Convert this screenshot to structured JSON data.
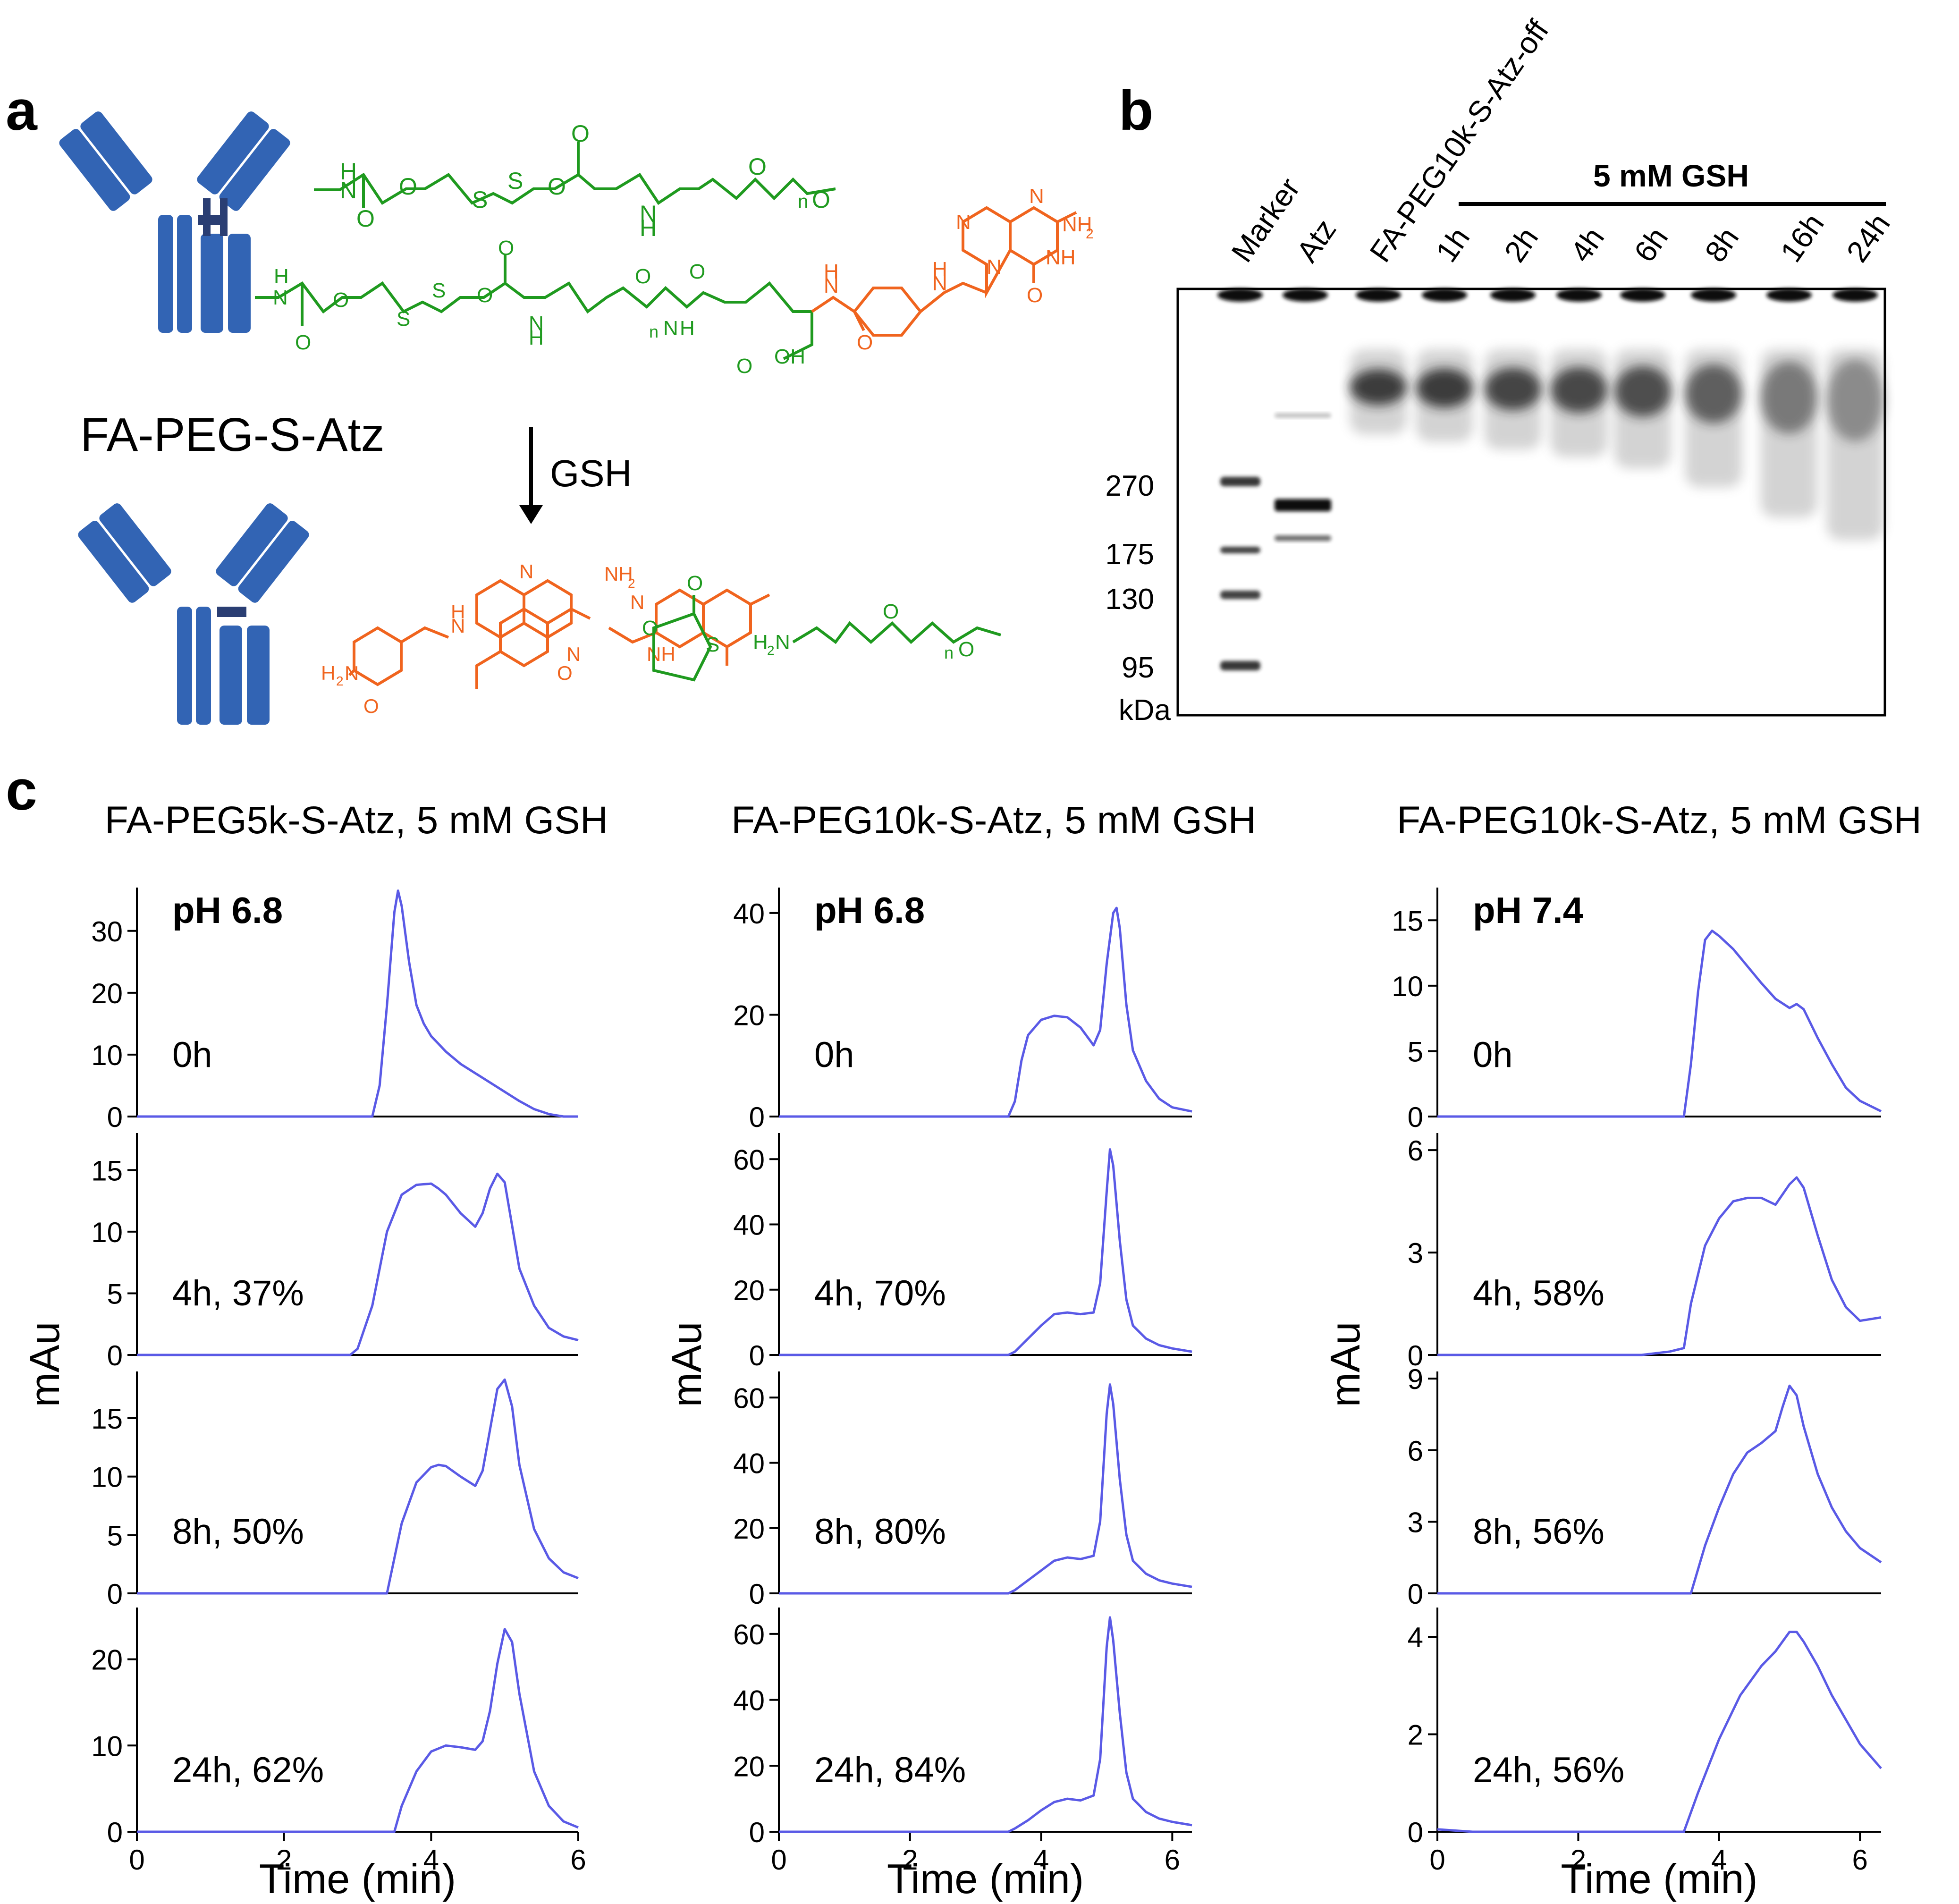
{
  "panel_a": {
    "label": "a",
    "conjugate_name": "FA-PEG-S-Atz",
    "arrow_label": "GSH",
    "chem": {
      "H": "H",
      "N": "N",
      "O": "O",
      "S": "S",
      "n": "n",
      "NH": "NH",
      "NH2": "NH",
      "NH2_sub": "2",
      "H2N": "H",
      "H2N_sub": "2",
      "H2N_N": "N",
      "OH": "OH"
    },
    "colors": {
      "antibody": "#3264B4",
      "peg": "#1F9A1F",
      "folate": "#F0641E"
    }
  },
  "panel_b": {
    "label": "b",
    "treatment": "5 mM GSH",
    "lanes": [
      "Marker",
      "Atz",
      "FA-PEG10k-S-Atz-off",
      "1h",
      "2h",
      "4h",
      "6h",
      "8h",
      "16h",
      "24h"
    ],
    "mw_marks": [
      "270",
      "175",
      "130",
      "95"
    ],
    "mw_unit": "kDa"
  },
  "panel_c": {
    "label": "c",
    "ylabel": "mAu",
    "xlabel": "Time (min)",
    "columns": [
      {
        "title": "FA-PEG5k-S-Atz, 5 mM GSH",
        "ph": "pH 6.8"
      },
      {
        "title": "FA-PEG10k-S-Atz, 5 mM GSH",
        "ph": "pH 6.8"
      },
      {
        "title": "FA-PEG10k-S-Atz, 5 mM GSH",
        "ph": "pH 7.4"
      }
    ]
  },
  "chart_data": [
    {
      "type": "line",
      "column": 0,
      "label": "0h",
      "xlim": [
        0,
        6
      ],
      "ylim": [
        0,
        37
      ],
      "yticks": [
        0,
        10,
        20,
        30
      ],
      "xticks": [
        0,
        2,
        4,
        6
      ],
      "color": "#5A5AE6",
      "x": [
        0,
        3.2,
        3.3,
        3.4,
        3.5,
        3.55,
        3.6,
        3.7,
        3.8,
        3.9,
        4.0,
        4.2,
        4.4,
        4.6,
        4.8,
        5.0,
        5.2,
        5.4,
        5.6,
        5.8,
        6.0
      ],
      "y": [
        0,
        0,
        5,
        18,
        33,
        36.5,
        34,
        25,
        18,
        15,
        13,
        10.5,
        8.5,
        7,
        5.5,
        4,
        2.5,
        1.2,
        0.4,
        0,
        0
      ]
    },
    {
      "type": "line",
      "column": 0,
      "label": "4h, 37%",
      "xlim": [
        0,
        6
      ],
      "ylim": [
        0,
        18
      ],
      "yticks": [
        0,
        5,
        10,
        15
      ],
      "xticks": [
        0,
        2,
        4,
        6
      ],
      "color": "#5A5AE6",
      "x": [
        0,
        2.9,
        3.0,
        3.2,
        3.4,
        3.6,
        3.8,
        4.0,
        4.1,
        4.2,
        4.4,
        4.6,
        4.7,
        4.8,
        4.9,
        5.0,
        5.1,
        5.2,
        5.4,
        5.6,
        5.8,
        6.0
      ],
      "y": [
        0,
        0,
        0.5,
        4,
        10,
        13,
        13.8,
        13.9,
        13.5,
        13,
        11.5,
        10.4,
        11.5,
        13.5,
        14.7,
        14,
        10.5,
        7,
        4,
        2.2,
        1.5,
        1.2
      ]
    },
    {
      "type": "line",
      "column": 0,
      "label": "8h, 50%",
      "xlim": [
        0,
        6
      ],
      "ylim": [
        0,
        19
      ],
      "yticks": [
        0,
        5,
        10,
        15
      ],
      "xticks": [
        0,
        2,
        4,
        6
      ],
      "color": "#5A5AE6",
      "x": [
        0,
        3.4,
        3.6,
        3.8,
        4.0,
        4.1,
        4.2,
        4.4,
        4.6,
        4.7,
        4.8,
        4.9,
        5.0,
        5.1,
        5.2,
        5.4,
        5.6,
        5.8,
        6.0
      ],
      "y": [
        0,
        0,
        6,
        9.5,
        10.8,
        11,
        10.9,
        10,
        9.2,
        10.5,
        14,
        17.5,
        18.3,
        16,
        11,
        5.5,
        3,
        1.8,
        1.3
      ]
    },
    {
      "type": "line",
      "column": 0,
      "label": "24h, 62%",
      "xlim": [
        0,
        6
      ],
      "ylim": [
        0,
        26
      ],
      "yticks": [
        0,
        10,
        20
      ],
      "xticks": [
        0,
        2,
        4,
        6
      ],
      "color": "#5A5AE6",
      "x": [
        0,
        3.5,
        3.6,
        3.8,
        4.0,
        4.2,
        4.4,
        4.6,
        4.7,
        4.8,
        4.9,
        5.0,
        5.1,
        5.2,
        5.4,
        5.6,
        5.8,
        6.0
      ],
      "y": [
        0,
        0,
        3,
        7,
        9.3,
        10,
        9.8,
        9.5,
        10.5,
        14,
        19.5,
        23.5,
        22,
        16,
        7,
        3,
        1.2,
        0.5
      ]
    },
    {
      "type": "line",
      "column": 1,
      "label": "0h",
      "xlim": [
        0,
        6.3
      ],
      "ylim": [
        0,
        45
      ],
      "yticks": [
        0,
        20,
        40
      ],
      "xticks": [
        0,
        2,
        4,
        6
      ],
      "color": "#5A5AE6",
      "x": [
        0,
        3.5,
        3.6,
        3.7,
        3.8,
        4.0,
        4.2,
        4.4,
        4.6,
        4.8,
        4.9,
        5.0,
        5.1,
        5.15,
        5.2,
        5.3,
        5.4,
        5.6,
        5.8,
        6.0,
        6.3
      ],
      "y": [
        0,
        0,
        3,
        11,
        16,
        19,
        19.8,
        19.5,
        17.5,
        14,
        17,
        30,
        40,
        41,
        37,
        22,
        13,
        7,
        3.5,
        1.8,
        1
      ]
    },
    {
      "type": "line",
      "column": 1,
      "label": "4h, 70%",
      "xlim": [
        0,
        6.3
      ],
      "ylim": [
        0,
        68
      ],
      "yticks": [
        0,
        20,
        40,
        60
      ],
      "xticks": [
        0,
        2,
        4,
        6
      ],
      "color": "#5A5AE6",
      "x": [
        0,
        3.5,
        3.6,
        3.8,
        4.0,
        4.2,
        4.4,
        4.6,
        4.8,
        4.9,
        5.0,
        5.05,
        5.1,
        5.2,
        5.3,
        5.4,
        5.6,
        5.8,
        6.0,
        6.3
      ],
      "y": [
        0,
        0,
        1,
        5,
        9,
        12.5,
        13,
        12.5,
        13,
        22,
        50,
        63,
        58,
        35,
        17,
        9,
        5,
        3,
        2,
        1
      ]
    },
    {
      "type": "line",
      "column": 1,
      "label": "8h, 80%",
      "xlim": [
        0,
        6.3
      ],
      "ylim": [
        0,
        68
      ],
      "yticks": [
        0,
        20,
        40,
        60
      ],
      "xticks": [
        0,
        2,
        4,
        6
      ],
      "color": "#5A5AE6",
      "x": [
        0,
        3.5,
        3.6,
        3.8,
        4.0,
        4.2,
        4.4,
        4.6,
        4.8,
        4.9,
        5.0,
        5.05,
        5.1,
        5.2,
        5.3,
        5.4,
        5.6,
        5.8,
        6.0,
        6.3
      ],
      "y": [
        0,
        0,
        1,
        4,
        7,
        10,
        11,
        10.5,
        11.5,
        22,
        55,
        64,
        58,
        35,
        18,
        10,
        6,
        4,
        3,
        2
      ]
    },
    {
      "type": "line",
      "column": 1,
      "label": "24h, 84%",
      "xlim": [
        0,
        6.3
      ],
      "ylim": [
        0,
        68
      ],
      "yticks": [
        0,
        20,
        40,
        60
      ],
      "xticks": [
        0,
        2,
        4,
        6
      ],
      "color": "#5A5AE6",
      "x": [
        0,
        3.5,
        3.6,
        3.8,
        4.0,
        4.2,
        4.4,
        4.6,
        4.8,
        4.9,
        5.0,
        5.05,
        5.1,
        5.2,
        5.3,
        5.4,
        5.6,
        5.8,
        6.0,
        6.3
      ],
      "y": [
        0,
        0,
        1,
        3.5,
        6.5,
        9,
        10,
        9.5,
        11,
        22,
        56,
        65,
        58,
        36,
        18,
        10,
        6,
        4,
        3,
        2
      ]
    },
    {
      "type": "line",
      "column": 2,
      "label": "0h",
      "xlim": [
        0,
        6.3
      ],
      "ylim": [
        0,
        17.5
      ],
      "yticks": [
        0,
        5,
        10,
        15
      ],
      "xticks": [
        0,
        2,
        4,
        6
      ],
      "color": "#5A5AE6",
      "x": [
        0,
        3.5,
        3.6,
        3.7,
        3.8,
        3.9,
        4.0,
        4.2,
        4.4,
        4.6,
        4.8,
        5.0,
        5.1,
        5.2,
        5.4,
        5.6,
        5.8,
        6.0,
        6.3
      ],
      "y": [
        0,
        0,
        4,
        9.5,
        13.5,
        14.2,
        13.8,
        12.8,
        11.5,
        10.2,
        9,
        8.3,
        8.6,
        8.2,
        6,
        4,
        2.2,
        1.2,
        0.4
      ]
    },
    {
      "type": "line",
      "column": 2,
      "label": "4h, 58%",
      "xlim": [
        0,
        6.3
      ],
      "ylim": [
        0,
        6.5
      ],
      "yticks": [
        0,
        3,
        6
      ],
      "xticks": [
        0,
        2,
        4,
        6
      ],
      "color": "#5A5AE6",
      "x": [
        0,
        2.9,
        3.3,
        3.5,
        3.6,
        3.8,
        4.0,
        4.2,
        4.4,
        4.6,
        4.8,
        5.0,
        5.1,
        5.2,
        5.4,
        5.6,
        5.8,
        6.0,
        6.3
      ],
      "y": [
        0,
        0,
        0.1,
        0.2,
        1.5,
        3.2,
        4,
        4.5,
        4.6,
        4.6,
        4.4,
        5,
        5.2,
        4.9,
        3.5,
        2.2,
        1.4,
        1,
        1.1
      ]
    },
    {
      "type": "line",
      "column": 2,
      "label": "8h, 56%",
      "xlim": [
        0,
        6.3
      ],
      "ylim": [
        0,
        9.3
      ],
      "yticks": [
        0,
        3,
        6,
        9
      ],
      "xticks": [
        0,
        2,
        4,
        6
      ],
      "color": "#5A5AE6",
      "x": [
        0,
        3.6,
        3.8,
        4.0,
        4.2,
        4.4,
        4.6,
        4.8,
        4.9,
        5.0,
        5.1,
        5.2,
        5.4,
        5.6,
        5.8,
        6.0,
        6.3
      ],
      "y": [
        0,
        0,
        2,
        3.6,
        5,
        5.9,
        6.3,
        6.8,
        7.8,
        8.7,
        8.3,
        7,
        5,
        3.6,
        2.6,
        1.9,
        1.3
      ]
    },
    {
      "type": "line",
      "column": 2,
      "label": "24h, 56%",
      "xlim": [
        0,
        6.3
      ],
      "ylim": [
        0,
        4.6
      ],
      "yticks": [
        0,
        2,
        4
      ],
      "xticks": [
        0,
        2,
        4,
        6
      ],
      "color": "#5A5AE6",
      "x": [
        0,
        0.5,
        3.5,
        3.7,
        4.0,
        4.3,
        4.6,
        4.8,
        5.0,
        5.1,
        5.2,
        5.4,
        5.6,
        5.8,
        6.0,
        6.3
      ],
      "y": [
        0.05,
        0,
        0,
        0.8,
        1.9,
        2.8,
        3.4,
        3.7,
        4.1,
        4.1,
        3.9,
        3.4,
        2.8,
        2.3,
        1.8,
        1.3
      ]
    }
  ]
}
